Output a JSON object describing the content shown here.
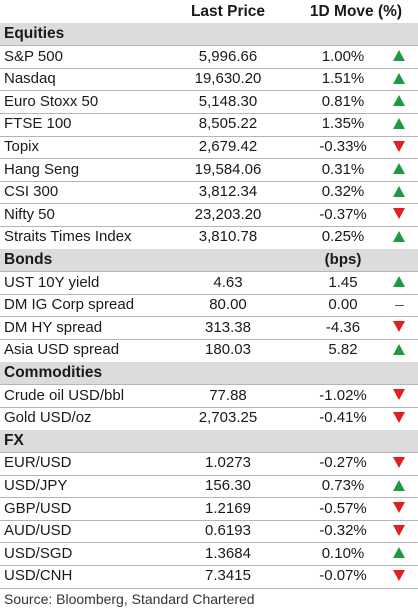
{
  "header": {
    "price_label": "Last Price",
    "move_label": "1D Move (%)"
  },
  "colors": {
    "up": "#1e9a43",
    "down": "#e02020",
    "section_bg": "#dcdcdc"
  },
  "sections": [
    {
      "title": "Equities",
      "unit": "",
      "rows": [
        {
          "name": "S&P 500",
          "price": "5,996.66",
          "move": "1.00%",
          "dir": "up"
        },
        {
          "name": "Nasdaq",
          "price": "19,630.20",
          "move": "1.51%",
          "dir": "up"
        },
        {
          "name": "Euro Stoxx 50",
          "price": "5,148.30",
          "move": "0.81%",
          "dir": "up"
        },
        {
          "name": "FTSE 100",
          "price": "8,505.22",
          "move": "1.35%",
          "dir": "up"
        },
        {
          "name": "Topix",
          "price": "2,679.42",
          "move": "-0.33%",
          "dir": "down"
        },
        {
          "name": "Hang Seng",
          "price": "19,584.06",
          "move": "0.31%",
          "dir": "up"
        },
        {
          "name": "CSI 300",
          "price": "3,812.34",
          "move": "0.32%",
          "dir": "up"
        },
        {
          "name": "Nifty 50",
          "price": "23,203.20",
          "move": "-0.37%",
          "dir": "down"
        },
        {
          "name": "Straits Times Index",
          "price": "3,810.78",
          "move": "0.25%",
          "dir": "up"
        }
      ]
    },
    {
      "title": "Bonds",
      "unit": "(bps)",
      "rows": [
        {
          "name": "UST 10Y yield",
          "price": "4.63",
          "move": "1.45",
          "dir": "up"
        },
        {
          "name": "DM IG Corp spread",
          "price": "80.00",
          "move": "0.00",
          "dir": "flat"
        },
        {
          "name": "DM HY spread",
          "price": "313.38",
          "move": "-4.36",
          "dir": "down"
        },
        {
          "name": "Asia USD spread",
          "price": "180.03",
          "move": "5.82",
          "dir": "up"
        }
      ]
    },
    {
      "title": "Commodities",
      "unit": "",
      "rows": [
        {
          "name": "Crude oil USD/bbl",
          "price": "77.88",
          "move": "-1.02%",
          "dir": "down"
        },
        {
          "name": "Gold USD/oz",
          "price": "2,703.25",
          "move": "-0.41%",
          "dir": "down"
        }
      ]
    },
    {
      "title": "FX",
      "unit": "",
      "rows": [
        {
          "name": "EUR/USD",
          "price": "1.0273",
          "move": "-0.27%",
          "dir": "down"
        },
        {
          "name": "USD/JPY",
          "price": "156.30",
          "move": "0.73%",
          "dir": "up"
        },
        {
          "name": "GBP/USD",
          "price": "1.2169",
          "move": "-0.57%",
          "dir": "down"
        },
        {
          "name": "AUD/USD",
          "price": "0.6193",
          "move": "-0.32%",
          "dir": "down"
        },
        {
          "name": "USD/SGD",
          "price": "1.3684",
          "move": "0.10%",
          "dir": "up"
        },
        {
          "name": "USD/CNH",
          "price": "7.3415",
          "move": "-0.07%",
          "dir": "down"
        }
      ]
    }
  ],
  "source": "Source: Bloomberg, Standard Chartered"
}
